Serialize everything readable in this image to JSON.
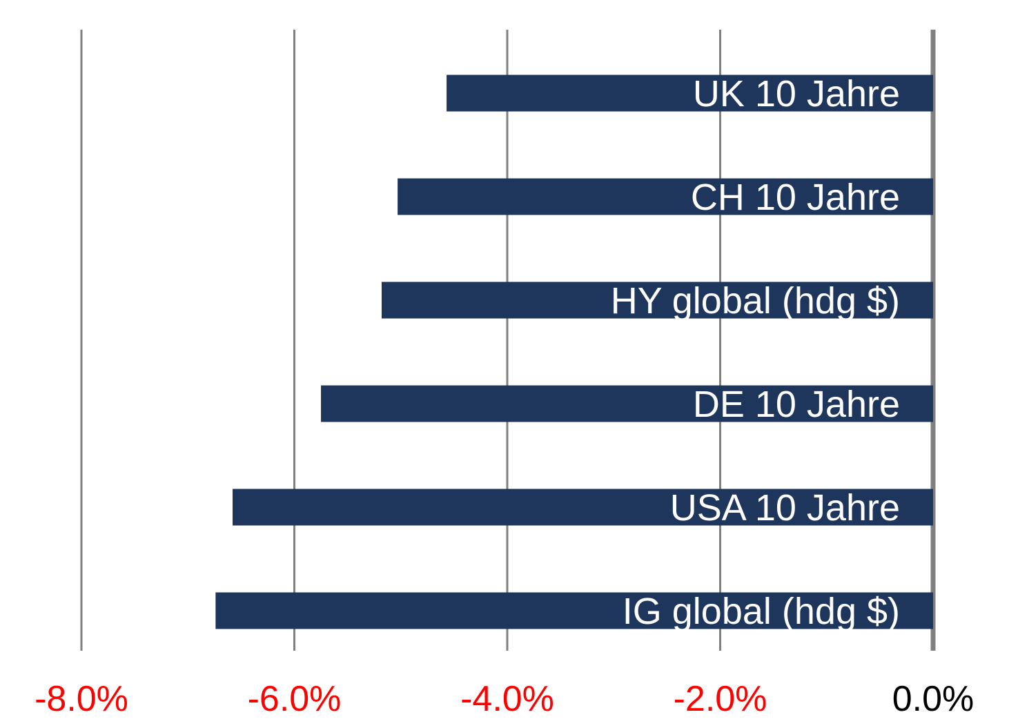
{
  "chart_data": {
    "type": "bar",
    "orientation": "horizontal",
    "categories": [
      "UK 10 Jahre",
      "CH 10 Jahre",
      "HY global (hdg $)",
      "DE 10 Jahre",
      "USA 10 Jahre",
      "IG global (hdg $)"
    ],
    "values": [
      -4.57,
      -5.03,
      -5.18,
      -5.75,
      -6.58,
      -6.74
    ],
    "xlim": [
      -8.0,
      0.0
    ],
    "x_ticks": [
      -8.0,
      -6.0,
      -4.0,
      -2.0,
      0.0
    ],
    "x_tick_labels": [
      "-8.0%",
      "-6.0%",
      "-4.0%",
      "-2.0%",
      "0.0%"
    ],
    "grid": true,
    "legend": "none",
    "colors": {
      "bar": "#1f365c",
      "bar_label": "#ffffff",
      "negative_tick": "#ff0000",
      "zero_tick": "#000000",
      "gridline": "#808080"
    }
  }
}
